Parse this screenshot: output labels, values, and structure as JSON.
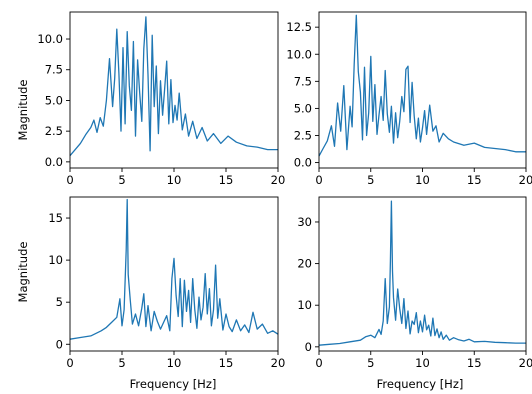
{
  "chart_data": [
    {
      "type": "line",
      "panel": "top-left",
      "xlabel": "",
      "ylabel": "Magnitude",
      "xlim": [
        0,
        20
      ],
      "ylim": [
        -0.5,
        12.2
      ],
      "xticks": [
        "0",
        "5",
        "10",
        "15",
        "20"
      ],
      "yticks": [
        "0.0",
        "2.5",
        "5.0",
        "7.5",
        "10.0"
      ],
      "series": [
        {
          "color": "#1f77b4",
          "x": [
            0,
            0.5,
            1,
            1.5,
            2,
            2.3,
            2.6,
            2.9,
            3.2,
            3.5,
            3.8,
            4.1,
            4.3,
            4.5,
            4.7,
            4.9,
            5.1,
            5.3,
            5.5,
            5.7,
            5.9,
            6.1,
            6.3,
            6.5,
            6.7,
            6.9,
            7.1,
            7.3,
            7.5,
            7.7,
            7.9,
            8.1,
            8.3,
            8.5,
            8.7,
            8.9,
            9.1,
            9.3,
            9.5,
            9.7,
            9.9,
            10.1,
            10.3,
            10.5,
            10.8,
            11.1,
            11.4,
            11.8,
            12.2,
            12.7,
            13.2,
            13.8,
            14.5,
            15.2,
            16,
            17,
            18,
            19,
            20
          ],
          "y": [
            0.5,
            1.0,
            1.5,
            2.2,
            2.8,
            3.4,
            2.4,
            3.6,
            2.9,
            5.0,
            8.4,
            4.5,
            6.8,
            10.8,
            7.2,
            2.5,
            9.3,
            3.1,
            10.6,
            6.2,
            4.2,
            9.8,
            2.1,
            8.3,
            5.6,
            3.3,
            9.2,
            11.8,
            7.1,
            0.9,
            10.3,
            4.5,
            7.8,
            2.3,
            6.6,
            3.8,
            5.9,
            8.2,
            3.1,
            6.7,
            3.2,
            4.6,
            3.4,
            5.6,
            2.6,
            3.9,
            2.1,
            3.3,
            1.9,
            2.8,
            1.7,
            2.3,
            1.5,
            2.1,
            1.6,
            1.3,
            1.2,
            1.0,
            1.0
          ]
        }
      ]
    },
    {
      "type": "line",
      "panel": "top-right",
      "xlabel": "",
      "ylabel": "",
      "xlim": [
        0,
        20
      ],
      "ylim": [
        -0.5,
        13.9
      ],
      "xticks": [
        "0",
        "5",
        "10",
        "15",
        "20"
      ],
      "yticks": [
        "0.0",
        "2.5",
        "5.0",
        "7.5",
        "10.0",
        "12.5"
      ],
      "series": [
        {
          "color": "#1f77b4",
          "x": [
            0,
            0.4,
            0.8,
            1.2,
            1.5,
            1.8,
            2.1,
            2.4,
            2.7,
            3.0,
            3.2,
            3.4,
            3.6,
            3.8,
            4.0,
            4.2,
            4.4,
            4.6,
            4.8,
            5.0,
            5.2,
            5.4,
            5.6,
            5.8,
            6.0,
            6.2,
            6.4,
            6.6,
            6.8,
            7.0,
            7.2,
            7.4,
            7.6,
            7.8,
            8.0,
            8.2,
            8.4,
            8.6,
            8.8,
            9.0,
            9.2,
            9.4,
            9.6,
            9.8,
            10.0,
            10.2,
            10.4,
            10.7,
            11.0,
            11.3,
            11.6,
            12.0,
            12.5,
            13,
            14,
            15,
            16,
            17,
            18,
            19,
            20
          ],
          "y": [
            0.6,
            1.3,
            2.0,
            3.4,
            1.5,
            5.5,
            2.9,
            7.1,
            1.2,
            5.2,
            3.3,
            9.1,
            13.6,
            8.4,
            6.5,
            2.1,
            8.8,
            2.5,
            4.6,
            9.8,
            3.8,
            7.2,
            2.6,
            4.4,
            6.1,
            3.9,
            8.5,
            4.5,
            2.8,
            5.2,
            1.8,
            4.6,
            2.3,
            3.8,
            6.1,
            4.7,
            8.6,
            8.9,
            3.7,
            7.4,
            4.3,
            2.2,
            4.1,
            1.9,
            3.2,
            4.8,
            2.6,
            5.3,
            2.9,
            3.4,
            1.9,
            2.7,
            2.2,
            1.9,
            1.6,
            1.8,
            1.4,
            1.3,
            1.2,
            1.0,
            1.0
          ]
        }
      ]
    },
    {
      "type": "line",
      "panel": "bottom-left",
      "xlabel": "Frequency [Hz]",
      "ylabel": "Magnitude",
      "xlim": [
        0,
        20
      ],
      "ylim": [
        -0.8,
        17.5
      ],
      "xticks": [
        "0",
        "5",
        "10",
        "15",
        "20"
      ],
      "yticks": [
        "0",
        "5",
        "10",
        "15"
      ],
      "series": [
        {
          "color": "#1f77b4",
          "x": [
            0,
            1,
            2,
            3,
            3.5,
            4,
            4.5,
            4.8,
            5.0,
            5.2,
            5.4,
            5.5,
            5.6,
            5.8,
            6.0,
            6.3,
            6.6,
            6.9,
            7.1,
            7.3,
            7.5,
            7.8,
            8.1,
            8.4,
            8.7,
            9.0,
            9.3,
            9.6,
            9.8,
            10.0,
            10.2,
            10.4,
            10.6,
            10.8,
            11.0,
            11.2,
            11.4,
            11.6,
            11.8,
            12.0,
            12.2,
            12.4,
            12.6,
            12.8,
            13.0,
            13.2,
            13.4,
            13.6,
            13.8,
            14.0,
            14.2,
            14.4,
            14.7,
            15.0,
            15.3,
            15.6,
            16.0,
            16.4,
            16.8,
            17.2,
            17.6,
            18.0,
            18.5,
            19.0,
            19.5,
            20
          ],
          "y": [
            0.6,
            0.8,
            1.0,
            1.6,
            2.0,
            2.6,
            3.2,
            5.4,
            2.2,
            4.1,
            11.2,
            17.2,
            8.3,
            5.2,
            2.4,
            3.6,
            2.2,
            4.3,
            6.0,
            2.1,
            4.6,
            1.6,
            3.9,
            2.7,
            1.8,
            2.6,
            3.4,
            1.6,
            7.8,
            10.2,
            5.8,
            3.3,
            7.8,
            2.1,
            7.6,
            3.9,
            6.4,
            2.6,
            7.8,
            4.1,
            1.9,
            5.6,
            2.9,
            4.4,
            8.4,
            3.6,
            6.6,
            2.2,
            4.1,
            9.4,
            3.1,
            5.4,
            1.7,
            3.6,
            2.1,
            1.5,
            2.9,
            1.6,
            2.3,
            1.4,
            3.8,
            1.8,
            2.4,
            1.3,
            1.6,
            1.2
          ]
        }
      ]
    },
    {
      "type": "line",
      "panel": "bottom-right",
      "xlabel": "Frequency [Hz]",
      "ylabel": "",
      "xlim": [
        0,
        20
      ],
      "ylim": [
        -1,
        36
      ],
      "xticks": [
        "0",
        "5",
        "10",
        "15",
        "20"
      ],
      "yticks": [
        "0",
        "10",
        "20",
        "30"
      ],
      "series": [
        {
          "color": "#1f77b4",
          "x": [
            0,
            1,
            2,
            3,
            4,
            4.5,
            5,
            5.4,
            5.8,
            6.0,
            6.2,
            6.4,
            6.6,
            6.8,
            6.9,
            7.0,
            7.1,
            7.2,
            7.4,
            7.6,
            7.8,
            8.0,
            8.2,
            8.4,
            8.6,
            8.8,
            9.0,
            9.2,
            9.4,
            9.6,
            9.8,
            10.0,
            10.2,
            10.4,
            10.6,
            10.8,
            11.0,
            11.2,
            11.4,
            11.6,
            11.8,
            12.0,
            12.3,
            12.6,
            13,
            13.5,
            14,
            14.5,
            15,
            16,
            17,
            18,
            19,
            20
          ],
          "y": [
            0.4,
            0.6,
            0.8,
            1.2,
            1.6,
            2.4,
            2.8,
            2.2,
            4.2,
            3.0,
            6.2,
            16.4,
            5.6,
            9.6,
            20.6,
            35.0,
            18.2,
            11.8,
            6.4,
            13.9,
            9.2,
            5.6,
            11.6,
            4.4,
            8.6,
            3.1,
            6.2,
            5.4,
            8.2,
            3.4,
            6.2,
            3.6,
            7.6,
            4.1,
            5.2,
            2.6,
            6.9,
            2.7,
            4.3,
            2.2,
            3.6,
            1.8,
            2.8,
            1.6,
            2.2,
            1.7,
            1.4,
            1.8,
            1.2,
            1.3,
            1.1,
            1.0,
            0.9,
            0.9
          ]
        }
      ]
    }
  ]
}
